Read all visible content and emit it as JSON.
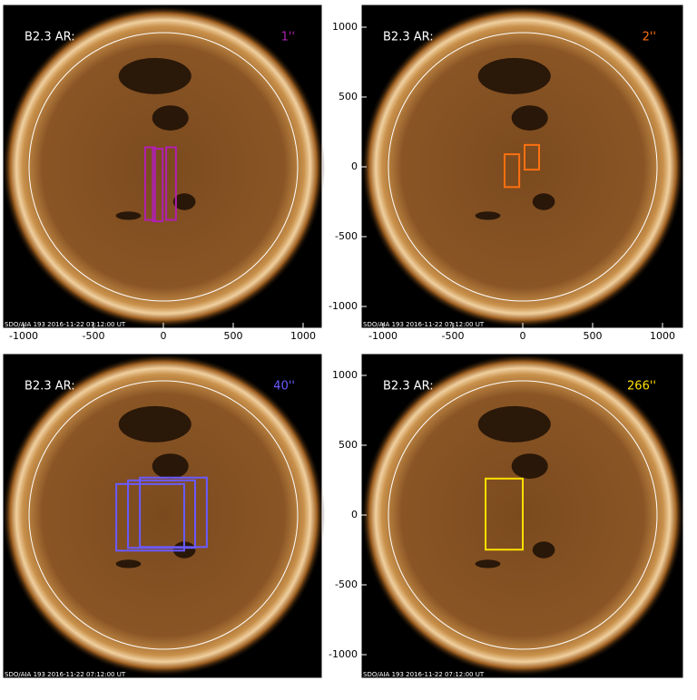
{
  "panels": [
    {
      "label": "B2.3 AR:",
      "tag": "1''",
      "color": "#b020b0",
      "footer": "SDO/AIA 193  2016-11-22 07:12:00 UT",
      "xticks": [
        -1000,
        -500,
        0,
        500,
        1000
      ],
      "boxes": [
        {
          "x": [
            -130,
            -60
          ],
          "y": [
            -380,
            140
          ]
        },
        {
          "x": [
            -75,
            -5
          ],
          "y": [
            -390,
            130
          ]
        },
        {
          "x": [
            20,
            90
          ],
          "y": [
            -380,
            140
          ]
        }
      ]
    },
    {
      "label": "B2.3 AR:",
      "tag": "2''",
      "color": "#ff7010",
      "footer": "SDO/AIA 193  2016-11-22 07:12:00 UT",
      "xticks": [
        -1000,
        -500,
        0,
        500,
        1000
      ],
      "yticks": [
        -1000,
        -500,
        0,
        500,
        1000
      ],
      "boxes": [
        {
          "x": [
            -130,
            -25
          ],
          "y": [
            -145,
            90
          ]
        },
        {
          "x": [
            13,
            117
          ],
          "y": [
            -20,
            157
          ]
        }
      ]
    },
    {
      "label": "B2.3 AR:",
      "tag": "40''",
      "color": "#6a5aff",
      "footer": "SDO/AIA 193  2016-11-22 07:12:00 UT",
      "boxes": [
        {
          "x": [
            -337,
            149
          ],
          "y": [
            -255,
            222
          ]
        },
        {
          "x": [
            -253,
            227
          ],
          "y": [
            -235,
            248
          ]
        },
        {
          "x": [
            -168,
            311
          ],
          "y": [
            -229,
            268
          ]
        }
      ]
    },
    {
      "label": "B2.3 AR:",
      "tag": "266''",
      "color": "#ffe000",
      "footer": "SDO/AIA 193  2016-11-22 07:12:00 UT",
      "yticks": [
        -1000,
        -500,
        0,
        500,
        1000
      ],
      "boxes": [
        {
          "x": [
            -266,
            0
          ],
          "y": [
            -248,
            261
          ]
        }
      ]
    }
  ]
}
